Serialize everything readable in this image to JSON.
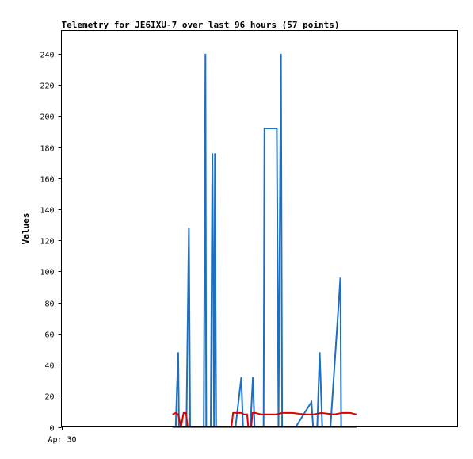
{
  "chart_data": {
    "type": "line",
    "title": "Telemetry for JE6IXU-7 over last 96 hours (57 points)",
    "xlabel": "",
    "ylabel": "Values",
    "ylim": [
      0,
      255
    ],
    "yticks": [
      0,
      20,
      40,
      60,
      80,
      100,
      120,
      140,
      160,
      180,
      200,
      220,
      240
    ],
    "xlim": [
      0,
      96
    ],
    "xticks": [
      {
        "x": 0,
        "label": "Apr 30"
      }
    ],
    "grid": false,
    "legend": "none",
    "colors": {
      "blue": "#1f6fbf",
      "red": "#e00000",
      "black": "#000000"
    },
    "series": [
      {
        "color": "#1f6fbf",
        "points": [
          [
            27.7,
            0
          ],
          [
            28.3,
            48
          ],
          [
            28.5,
            0
          ],
          [
            30.3,
            0
          ],
          [
            30.9,
            128
          ],
          [
            31.2,
            0
          ],
          [
            34.5,
            0
          ],
          [
            34.9,
            240
          ],
          [
            35.1,
            0
          ],
          [
            36.2,
            0
          ],
          [
            36.6,
            176
          ],
          [
            37.0,
            0
          ],
          [
            37.2,
            176
          ],
          [
            37.5,
            0
          ],
          [
            39.8,
            0
          ],
          [
            42.2,
            0
          ],
          [
            43.6,
            32
          ],
          [
            44.0,
            0
          ],
          [
            45.8,
            0
          ],
          [
            46.4,
            32
          ],
          [
            46.8,
            0
          ],
          [
            49.0,
            0
          ],
          [
            49.2,
            192
          ],
          [
            52.2,
            192
          ],
          [
            52.6,
            0
          ],
          [
            53.2,
            240
          ],
          [
            53.5,
            0
          ],
          [
            56.8,
            0
          ],
          [
            60.6,
            16
          ],
          [
            61.0,
            0
          ],
          [
            62.0,
            0
          ],
          [
            62.6,
            48
          ],
          [
            63.2,
            0
          ],
          [
            65.2,
            0
          ],
          [
            67.6,
            96
          ],
          [
            67.8,
            0
          ]
        ]
      },
      {
        "color": "#e00000",
        "points": [
          [
            26.9,
            8
          ],
          [
            27.7,
            9
          ],
          [
            28.3,
            8
          ],
          [
            29.0,
            0
          ],
          [
            29.6,
            9
          ],
          [
            30.2,
            9
          ],
          [
            30.6,
            0
          ],
          [
            41.2,
            0
          ],
          [
            41.6,
            9
          ],
          [
            43.5,
            9
          ],
          [
            44.3,
            8
          ],
          [
            45.0,
            8
          ],
          [
            45.3,
            0
          ],
          [
            46.0,
            0
          ],
          [
            46.3,
            9
          ],
          [
            47.0,
            9
          ],
          [
            48.5,
            8
          ],
          [
            52.0,
            8
          ],
          [
            53.5,
            9
          ],
          [
            56.0,
            9
          ],
          [
            59.0,
            8
          ],
          [
            61.0,
            8
          ],
          [
            63.0,
            9
          ],
          [
            66.0,
            8
          ],
          [
            68.0,
            9
          ],
          [
            70.0,
            9
          ],
          [
            71.5,
            8
          ]
        ]
      },
      {
        "color": "#000000",
        "points": [
          [
            26.9,
            0
          ],
          [
            71.5,
            0
          ]
        ]
      }
    ]
  }
}
